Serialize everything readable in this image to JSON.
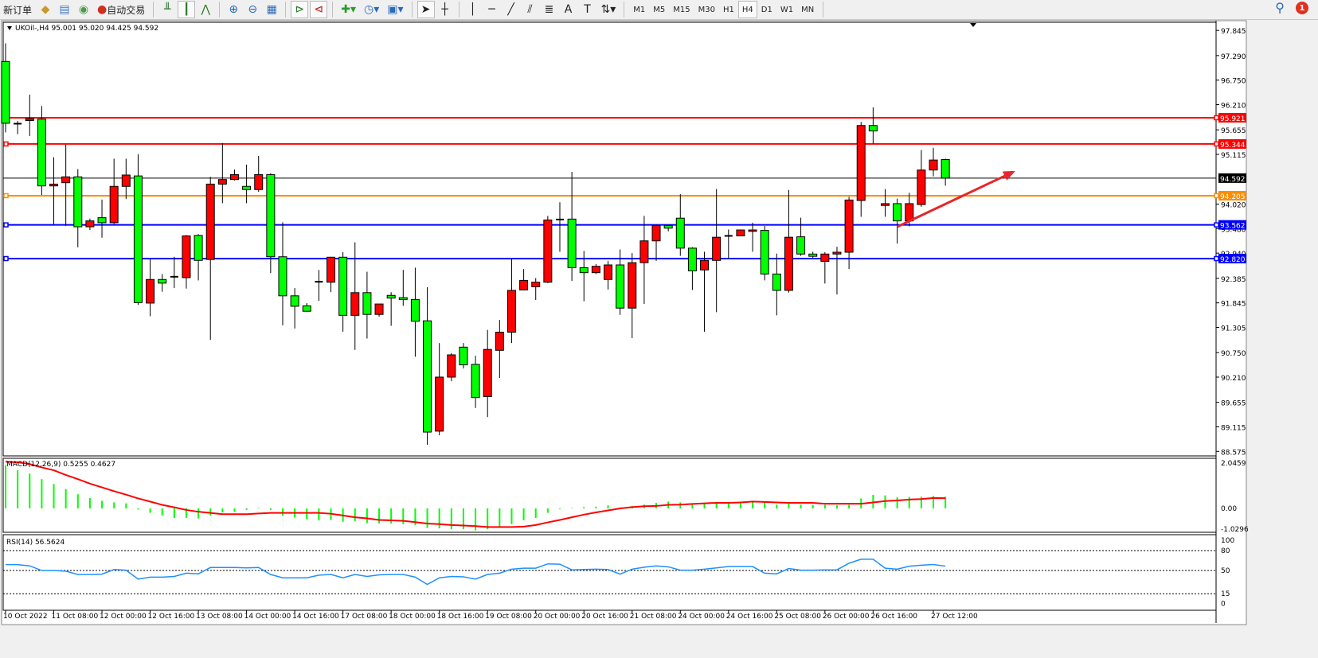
{
  "toolbar": {
    "new_order_label": "新订单",
    "auto_trading_label": "自动交易",
    "timeframes": [
      "M1",
      "M5",
      "M15",
      "M30",
      "H1",
      "H4",
      "D1",
      "W1",
      "MN"
    ],
    "active_timeframe": "H4",
    "notification_count": "1",
    "icons": [
      "market-watch-icon",
      "data-window-icon",
      "signal-icon",
      "auto-trading-icon",
      "bar-chart-icon",
      "candlestick-icon",
      "line-chart-icon",
      "zoom-in-icon",
      "zoom-out-icon",
      "tile-windows-icon",
      "auto-scroll-icon",
      "chart-shift-icon",
      "indicators-icon",
      "periods-icon",
      "templates-icon",
      "cursor-icon",
      "crosshair-icon",
      "vertical-line-icon",
      "horizontal-line-icon",
      "trend-line-icon",
      "fibonacci-icon",
      "fibo-fan-icon",
      "text-icon",
      "text-label-icon",
      "arrows-icon",
      "search-icon",
      "notification-icon"
    ]
  },
  "chart": {
    "header": "UKOil-,H4  95.001 95.020 94.425 94.592",
    "macd_label": "MACD(12,26,9) 0.5255 0.4627",
    "rsi_label": "RSI(14) 56.5624",
    "colors": {
      "bull": "#ff0000",
      "bear": "#00ff00",
      "doji": "#000000",
      "macd_hist": "#00ff00",
      "macd_signal": "#ff0000",
      "rsi": "#1e90ff"
    }
  },
  "chart_data": [
    {
      "type": "candlestick",
      "symbol": "UKOil-",
      "timeframe": "H4",
      "ohlc_last": {
        "open": 95.001,
        "high": 95.02,
        "low": 94.425,
        "close": 94.592
      },
      "ylim": [
        88.575,
        97.845
      ],
      "y_ticks": [
        "97.845",
        "97.290",
        "96.750",
        "96.210",
        "95.655",
        "95.115",
        "94.020",
        "93.480",
        "92.940",
        "92.385",
        "91.845",
        "91.305",
        "90.750",
        "90.210",
        "89.655",
        "89.115",
        "88.575"
      ],
      "x_ticks": [
        "10 Oct 2022",
        "11 Oct 08:00",
        "12 Oct 00:00",
        "12 Oct 16:00",
        "13 Oct 08:00",
        "14 Oct 00:00",
        "14 Oct 16:00",
        "17 Oct 08:00",
        "18 Oct 00:00",
        "18 Oct 16:00",
        "19 Oct 08:00",
        "20 Oct 00:00",
        "20 Oct 16:00",
        "21 Oct 08:00",
        "24 Oct 00:00",
        "24 Oct 16:00",
        "25 Oct 08:00",
        "26 Oct 00:00",
        "26 Oct 16:00",
        "27 Oct 12:00"
      ],
      "x_tick_bar_index": [
        0,
        4,
        8,
        12,
        16,
        20,
        24,
        28,
        32,
        36,
        40,
        44,
        48,
        52,
        56,
        60,
        64,
        68,
        72,
        77
      ],
      "candles_ohlc": [
        [
          97.16,
          97.56,
          95.6,
          95.8
        ],
        [
          95.78,
          95.85,
          95.56,
          95.79
        ],
        [
          95.86,
          96.43,
          95.52,
          95.9
        ],
        [
          95.89,
          96.18,
          94.22,
          94.42
        ],
        [
          94.42,
          95.05,
          93.57,
          94.46
        ],
        [
          94.49,
          95.33,
          93.54,
          94.62
        ],
        [
          94.62,
          94.79,
          93.07,
          93.52
        ],
        [
          93.52,
          93.7,
          93.45,
          93.65
        ],
        [
          93.72,
          94.12,
          93.28,
          93.61
        ],
        [
          93.61,
          95.02,
          93.58,
          94.41
        ],
        [
          94.41,
          95.02,
          94.13,
          94.66
        ],
        [
          94.64,
          95.12,
          91.8,
          91.85
        ],
        [
          91.84,
          92.81,
          91.55,
          92.36
        ],
        [
          92.36,
          92.48,
          92.09,
          92.28
        ],
        [
          92.4,
          92.86,
          92.17,
          92.42
        ],
        [
          92.4,
          93.34,
          92.16,
          93.32
        ],
        [
          93.33,
          93.36,
          92.34,
          92.78
        ],
        [
          92.8,
          94.62,
          91.03,
          94.46
        ],
        [
          94.46,
          95.36,
          94.04,
          94.56
        ],
        [
          94.56,
          94.78,
          94.54,
          94.67
        ],
        [
          94.41,
          94.89,
          94.04,
          94.34
        ],
        [
          94.34,
          95.08,
          94.29,
          94.67
        ],
        [
          94.67,
          94.7,
          92.5,
          92.86
        ],
        [
          92.86,
          93.62,
          91.35,
          92.0
        ],
        [
          92.0,
          92.17,
          91.28,
          91.77
        ],
        [
          91.78,
          91.84,
          91.64,
          91.66
        ],
        [
          92.31,
          92.57,
          91.89,
          92.3
        ],
        [
          92.3,
          92.86,
          92.08,
          92.85
        ],
        [
          92.85,
          92.96,
          91.21,
          91.57
        ],
        [
          91.57,
          93.18,
          90.81,
          92.07
        ],
        [
          92.07,
          92.53,
          91.06,
          91.59
        ],
        [
          91.59,
          91.82,
          91.54,
          91.82
        ],
        [
          92.01,
          92.08,
          91.34,
          91.95
        ],
        [
          91.96,
          92.57,
          91.78,
          91.92
        ],
        [
          91.92,
          92.62,
          90.66,
          91.44
        ],
        [
          91.45,
          92.19,
          88.72,
          89.0
        ],
        [
          89.02,
          90.96,
          88.93,
          90.21
        ],
        [
          90.21,
          90.74,
          90.12,
          90.7
        ],
        [
          90.87,
          90.96,
          90.4,
          90.48
        ],
        [
          90.49,
          90.68,
          89.53,
          89.76
        ],
        [
          89.78,
          91.25,
          89.33,
          90.82
        ],
        [
          90.8,
          91.47,
          90.19,
          91.2
        ],
        [
          91.2,
          92.82,
          90.96,
          92.12
        ],
        [
          92.13,
          92.59,
          92.12,
          92.34
        ],
        [
          92.2,
          92.39,
          91.91,
          92.3
        ],
        [
          92.3,
          93.76,
          92.28,
          93.67
        ],
        [
          93.68,
          94.06,
          92.97,
          93.68
        ],
        [
          93.69,
          94.73,
          92.33,
          92.62
        ],
        [
          92.62,
          92.99,
          91.88,
          92.51
        ],
        [
          92.51,
          92.7,
          92.48,
          92.65
        ],
        [
          92.36,
          92.77,
          92.14,
          92.68
        ],
        [
          92.68,
          93.02,
          91.58,
          91.73
        ],
        [
          91.73,
          92.94,
          91.07,
          92.73
        ],
        [
          92.73,
          93.76,
          91.82,
          93.21
        ],
        [
          93.21,
          93.55,
          92.77,
          93.55
        ],
        [
          93.55,
          93.56,
          93.42,
          93.49
        ],
        [
          93.71,
          94.24,
          92.88,
          93.05
        ],
        [
          93.05,
          93.07,
          92.13,
          92.55
        ],
        [
          92.57,
          92.97,
          91.21,
          92.78
        ],
        [
          92.78,
          94.35,
          91.64,
          93.29
        ],
        [
          93.32,
          93.46,
          92.82,
          93.31
        ],
        [
          93.32,
          93.46,
          93.32,
          93.45
        ],
        [
          93.42,
          93.61,
          92.97,
          93.45
        ],
        [
          93.44,
          93.54,
          92.34,
          92.48
        ],
        [
          92.48,
          92.93,
          91.57,
          92.12
        ],
        [
          92.12,
          94.33,
          92.07,
          93.29
        ],
        [
          93.3,
          93.72,
          92.88,
          92.92
        ],
        [
          92.92,
          92.97,
          92.84,
          92.87
        ],
        [
          92.76,
          92.96,
          92.27,
          92.92
        ],
        [
          92.92,
          93.08,
          92.03,
          92.96
        ],
        [
          92.96,
          94.18,
          92.59,
          94.11
        ],
        [
          94.1,
          95.83,
          93.74,
          95.75
        ],
        [
          95.75,
          96.15,
          95.35,
          95.63
        ],
        [
          93.99,
          94.35,
          93.74,
          94.03
        ],
        [
          94.03,
          94.14,
          93.15,
          93.65
        ],
        [
          93.65,
          94.27,
          93.53,
          94.03
        ],
        [
          94.01,
          95.21,
          93.96,
          94.77
        ],
        [
          94.77,
          95.26,
          94.63,
          94.99
        ],
        [
          95.001,
          95.02,
          94.425,
          94.592
        ]
      ],
      "horizontal_lines": [
        {
          "price": "95.921",
          "color": "#ff0000"
        },
        {
          "price": "95.344",
          "color": "#ff0000"
        },
        {
          "price": "94.205",
          "color": "#ff8c00"
        },
        {
          "price": "93.562",
          "color": "#0000ff"
        },
        {
          "price": "92.820",
          "color": "#0000ff"
        }
      ],
      "bid_line": {
        "price": "94.592",
        "color": "#000000"
      },
      "trend_arrow": {
        "color": "#e8252a",
        "from": {
          "bar": 74,
          "price": 93.52
        },
        "to": {
          "bar": 83.8,
          "price": 94.75
        }
      }
    },
    {
      "type": "macd",
      "ylim": [
        -1.0296,
        2.0459
      ],
      "y_ticks": [
        "2.0459",
        "0.00",
        "-1.0296"
      ],
      "histogram": [
        1.94,
        1.72,
        1.57,
        1.32,
        1.1,
        0.87,
        0.64,
        0.47,
        0.34,
        0.27,
        0.23,
        -0.05,
        -0.2,
        -0.32,
        -0.43,
        -0.43,
        -0.45,
        -0.32,
        -0.18,
        -0.15,
        -0.07,
        0.02,
        -0.07,
        -0.32,
        -0.41,
        -0.49,
        -0.54,
        -0.52,
        -0.6,
        -0.57,
        -0.66,
        -0.68,
        -0.68,
        -0.71,
        -0.75,
        -0.88,
        -0.9,
        -0.94,
        -0.94,
        -0.99,
        -0.94,
        -0.82,
        -0.71,
        -0.54,
        -0.43,
        -0.2,
        -0.03,
        0.02,
        0.06,
        0.08,
        0.14,
        0.05,
        0.11,
        0.17,
        0.25,
        0.31,
        0.27,
        0.19,
        0.23,
        0.27,
        0.27,
        0.31,
        0.33,
        0.27,
        0.17,
        0.21,
        0.17,
        0.16,
        0.16,
        0.14,
        0.16,
        0.45,
        0.61,
        0.59,
        0.5,
        0.52,
        0.53,
        0.56,
        0.5255
      ],
      "signal": [
        2.11,
        2.08,
        2.0,
        1.85,
        1.72,
        1.51,
        1.32,
        1.12,
        0.95,
        0.78,
        0.62,
        0.45,
        0.31,
        0.16,
        0.05,
        -0.07,
        -0.15,
        -0.2,
        -0.26,
        -0.26,
        -0.26,
        -0.23,
        -0.2,
        -0.2,
        -0.2,
        -0.2,
        -0.2,
        -0.24,
        -0.32,
        -0.4,
        -0.45,
        -0.52,
        -0.54,
        -0.56,
        -0.62,
        -0.68,
        -0.71,
        -0.75,
        -0.77,
        -0.8,
        -0.84,
        -0.84,
        -0.84,
        -0.82,
        -0.75,
        -0.63,
        -0.52,
        -0.4,
        -0.28,
        -0.18,
        -0.09,
        0.0,
        0.06,
        0.1,
        0.11,
        0.16,
        0.17,
        0.2,
        0.23,
        0.25,
        0.25,
        0.27,
        0.31,
        0.29,
        0.27,
        0.25,
        0.25,
        0.25,
        0.21,
        0.21,
        0.21,
        0.21,
        0.27,
        0.33,
        0.36,
        0.4,
        0.42,
        0.47,
        0.4627
      ]
    },
    {
      "type": "line",
      "indicator": "RSI(14)",
      "ylim": [
        0,
        100
      ],
      "y_ticks": [
        "100",
        "80",
        "50",
        "15",
        "0"
      ],
      "levels": [
        80,
        50,
        15
      ],
      "values": [
        58.9,
        58.9,
        57,
        50,
        50,
        49,
        44,
        44,
        44.5,
        51.5,
        50.5,
        37,
        40,
        40,
        41,
        46,
        45,
        54.5,
        54.5,
        54.5,
        54,
        54.5,
        44,
        39,
        39,
        39,
        43,
        44,
        39,
        44,
        41,
        43.5,
        44,
        44,
        40,
        29,
        39,
        41,
        40.5,
        37,
        44,
        46,
        52,
        53.5,
        53.5,
        60,
        59.5,
        51,
        51.5,
        52,
        51.5,
        44.5,
        52,
        55,
        57,
        55.5,
        50.5,
        50.5,
        52,
        54,
        56,
        56,
        56,
        46,
        45,
        53,
        50.5,
        50.5,
        51,
        51,
        61,
        67,
        67,
        53.5,
        52,
        56.5,
        58,
        59,
        56.5624
      ]
    }
  ]
}
